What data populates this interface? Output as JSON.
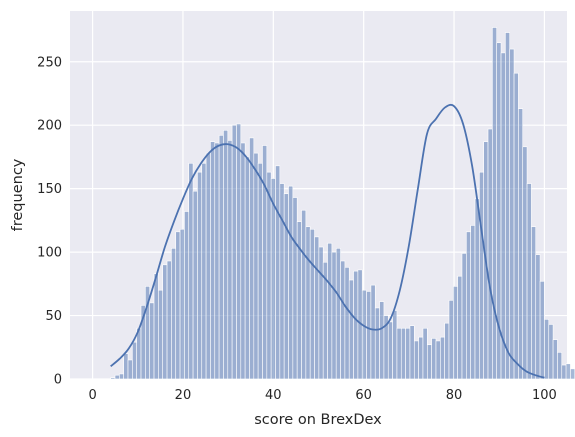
{
  "chart_data": {
    "type": "histogram",
    "xlabel": "score on BrexDex",
    "ylabel": "frequency",
    "xlim": [
      -5,
      105
    ],
    "ylim": [
      0,
      290
    ],
    "xticks": [
      0,
      20,
      40,
      60,
      80,
      100
    ],
    "yticks": [
      0,
      50,
      100,
      150,
      200,
      250
    ],
    "grid": true,
    "background": "#eaeaf2",
    "bar_color": "#4c72b0",
    "line_color": "#4c72b0",
    "bins": {
      "start": 4,
      "width": 0.96,
      "counts": [
        1,
        3,
        4,
        20,
        15,
        29,
        40,
        58,
        73,
        60,
        83,
        70,
        90,
        93,
        103,
        116,
        118,
        132,
        170,
        148,
        163,
        170,
        178,
        187,
        186,
        192,
        196,
        188,
        200,
        201,
        186,
        175,
        190,
        178,
        170,
        184,
        163,
        158,
        168,
        154,
        146,
        152,
        143,
        124,
        133,
        120,
        118,
        112,
        104,
        92,
        107,
        100,
        103,
        93,
        88,
        78,
        85,
        86,
        70,
        69,
        74,
        56,
        61,
        50,
        45,
        54,
        40,
        40,
        40,
        42,
        30,
        33,
        40,
        27,
        32,
        30,
        33,
        44,
        62,
        73,
        81,
        99,
        116,
        121,
        142,
        163,
        187,
        197,
        277,
        265,
        257,
        273,
        260,
        241,
        213,
        183,
        154,
        120,
        98,
        77,
        47,
        43,
        31,
        21,
        11,
        12,
        8,
        4,
        2
      ]
    },
    "kde": {
      "x": [
        4,
        6,
        8,
        10,
        12,
        14,
        16,
        18,
        20,
        22,
        24,
        26,
        28,
        30,
        32,
        34,
        36,
        38,
        40,
        42,
        44,
        46,
        48,
        50,
        52,
        54,
        56,
        58,
        60,
        62,
        64,
        66,
        68,
        70,
        72,
        74,
        76,
        78,
        80,
        82,
        84,
        86,
        88,
        90,
        92,
        94,
        96,
        98,
        100
      ],
      "y": [
        10,
        16,
        24,
        37,
        57,
        80,
        104,
        124,
        142,
        158,
        170,
        179,
        184,
        185,
        182,
        175,
        165,
        153,
        138,
        125,
        112,
        102,
        93,
        85,
        77,
        68,
        57,
        48,
        42,
        39,
        40,
        48,
        70,
        105,
        150,
        193,
        205,
        214,
        215,
        201,
        168,
        119,
        71,
        40,
        21,
        12,
        6,
        3,
        1
      ]
    }
  }
}
